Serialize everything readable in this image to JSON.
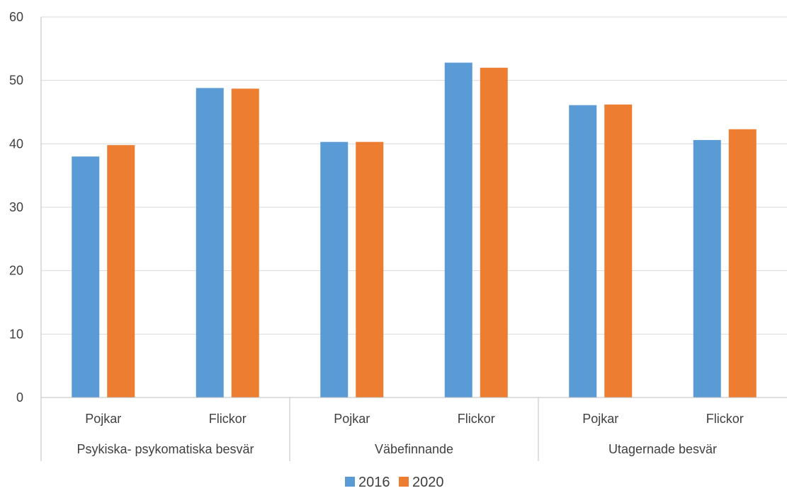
{
  "chart_data": {
    "type": "bar",
    "groups": [
      {
        "label": "Psykiska-  psykomatiska besvär",
        "categories": [
          "Pojkar",
          "Flickor"
        ]
      },
      {
        "label": "Väbefinnande",
        "categories": [
          "Pojkar",
          "Flickor"
        ]
      },
      {
        "label": "Utagernade besvär",
        "categories": [
          "Pojkar",
          "Flickor"
        ]
      }
    ],
    "categories": [
      "Pojkar",
      "Flickor",
      "Pojkar",
      "Flickor",
      "Pojkar",
      "Flickor"
    ],
    "series": [
      {
        "name": "2016",
        "color": "#5B9BD5",
        "values": [
          38.0,
          48.8,
          40.3,
          52.8,
          46.1,
          40.6
        ]
      },
      {
        "name": "2020",
        "color": "#ED7D31",
        "values": [
          39.8,
          48.7,
          40.3,
          52.0,
          46.2,
          42.3
        ]
      }
    ],
    "ylim": [
      0,
      60
    ],
    "yticks": [
      0,
      10,
      20,
      30,
      40,
      50,
      60
    ],
    "grid": true,
    "legend": "bottom"
  }
}
